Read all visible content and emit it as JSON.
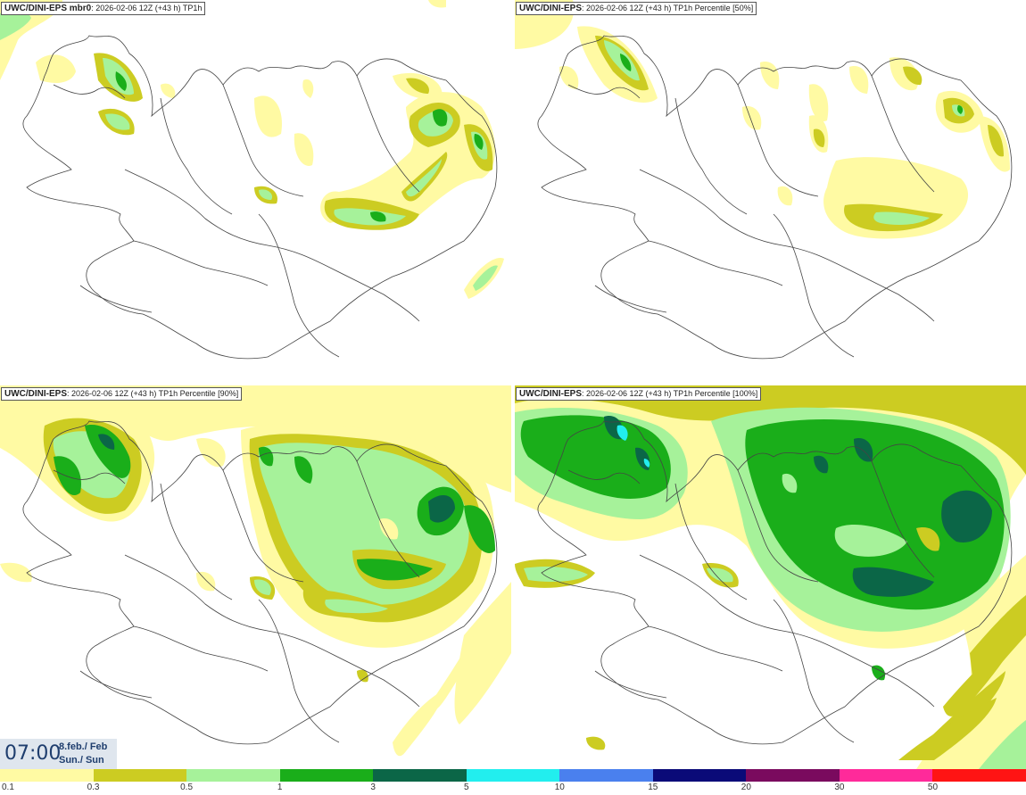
{
  "panels": [
    {
      "model": "UWC/DINI-EPS",
      "member": " mbr0",
      "info": ": 2026-02-06 12Z (+43 h) TP1h"
    },
    {
      "model": "UWC/DINI-EPS",
      "member": "",
      "info": ": 2026-02-06 12Z (+43 h) TP1h Percentile [50%]"
    },
    {
      "model": "UWC/DINI-EPS",
      "member": "",
      "info": ": 2026-02-06 12Z (+43 h) TP1h Percentile [90%]"
    },
    {
      "model": "UWC/DINI-EPS",
      "member": "",
      "info": ": 2026-02-06 12Z (+43 h) TP1h Percentile [100%]"
    }
  ],
  "valid_time": {
    "time": "07:00",
    "date_line1": "8.feb./ Feb",
    "date_line2": "Sun./ Sun"
  },
  "colorbar": {
    "colors": [
      "#fffaa3",
      "#cccc22",
      "#a6f29a",
      "#1aae1a",
      "#0b6647",
      "#22eeee",
      "#4a80ee",
      "#0a0a78",
      "#7a0a5e",
      "#ff2a9a",
      "#ff1414"
    ],
    "labels": [
      "0.1",
      "0.3",
      "0.5",
      "1",
      "3",
      "5",
      "10",
      "15",
      "20",
      "30",
      "50"
    ]
  },
  "precip_colors": {
    "light": "#fffaa3",
    "olive": "#cccc22",
    "pale_green": "#a6f29a",
    "green": "#1aae1a",
    "dark_green": "#0b6647",
    "cyan": "#22eeee"
  }
}
